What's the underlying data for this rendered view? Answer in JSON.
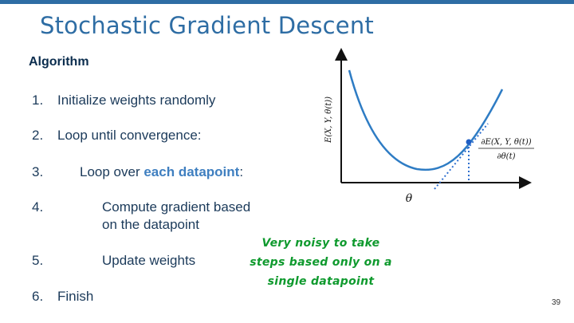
{
  "slide": {
    "title": "Stochastic Gradient Descent",
    "subtitle": "Algorithm",
    "steps": [
      {
        "num": "1.",
        "text": "Initialize weights randomly"
      },
      {
        "num": "2.",
        "text": "Loop until convergence:"
      },
      {
        "num": "3.",
        "text_before": "Loop over ",
        "highlight": "each datapoint",
        "text_after": ":"
      },
      {
        "num": "4.",
        "line1": "Compute gradient based",
        "line2": "on the datapoint"
      },
      {
        "num": "5.",
        "text": "Update weights"
      },
      {
        "num": "6.",
        "text": "Finish"
      }
    ],
    "annotation": {
      "line1": "Very noisy to take",
      "line2": "steps based only on a",
      "line3": "single datapoint"
    },
    "page_number": "39"
  },
  "graph": {
    "y_label": "E(X, Y, θ(t))",
    "x_label": "θ",
    "derivative_numerator": "∂E(X, Y, θ(t))",
    "derivative_denominator": "∂θ(t)",
    "curve_color": "#2e7cc4",
    "tangent_color": "#2e6fcf"
  },
  "colors": {
    "accent": "#2e6da4",
    "highlight": "#3f7fc0",
    "note": "#0f9a2e"
  }
}
